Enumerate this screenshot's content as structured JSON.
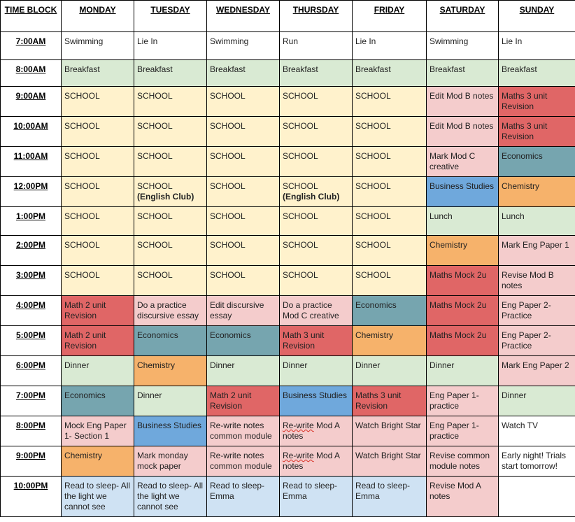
{
  "headers": [
    "TIME BLOCK",
    "MONDAY",
    "TUESDAY",
    "WEDNESDAY",
    "THURSDAY",
    "FRIDAY",
    "SATURDAY",
    "SUNDAY"
  ],
  "colors": {
    "white": "#ffffff",
    "green": "#d9ead3",
    "yellow": "#fff2cc",
    "pink": "#f4cccc",
    "red": "#e06666",
    "teal": "#76a5af",
    "orange": "#f6b26b",
    "blue": "#6fa8dc",
    "lightblue": "#cfe2f3"
  },
  "rows": [
    {
      "time": "7:00AM",
      "cells": [
        {
          "text": "Swimming",
          "color": "white"
        },
        {
          "text": "Lie In",
          "color": "white"
        },
        {
          "text": "Swimming",
          "color": "white"
        },
        {
          "text": "Run",
          "color": "white"
        },
        {
          "text": "Lie In",
          "color": "white"
        },
        {
          "text": "Swimming",
          "color": "white"
        },
        {
          "text": "Lie In",
          "color": "white"
        }
      ]
    },
    {
      "time": "8:00AM",
      "cells": [
        {
          "text": "Breakfast",
          "color": "green"
        },
        {
          "text": "Breakfast",
          "color": "green"
        },
        {
          "text": "Breakfast",
          "color": "green"
        },
        {
          "text": "Breakfast",
          "color": "green"
        },
        {
          "text": "Breakfast",
          "color": "green"
        },
        {
          "text": "Breakfast",
          "color": "green"
        },
        {
          "text": "Breakfast",
          "color": "green"
        }
      ]
    },
    {
      "time": "9:00AM",
      "cells": [
        {
          "text": "SCHOOL",
          "color": "yellow"
        },
        {
          "text": "SCHOOL",
          "color": "yellow"
        },
        {
          "text": "SCHOOL",
          "color": "yellow"
        },
        {
          "text": "SCHOOL",
          "color": "yellow"
        },
        {
          "text": "SCHOOL",
          "color": "yellow"
        },
        {
          "text": "Edit Mod B notes",
          "color": "pink"
        },
        {
          "text": "Maths 3 unit Revision",
          "color": "red"
        }
      ]
    },
    {
      "time": "10:00AM",
      "cells": [
        {
          "text": "SCHOOL",
          "color": "yellow"
        },
        {
          "text": "SCHOOL",
          "color": "yellow"
        },
        {
          "text": "SCHOOL",
          "color": "yellow"
        },
        {
          "text": "SCHOOL",
          "color": "yellow"
        },
        {
          "text": "SCHOOL",
          "color": "yellow"
        },
        {
          "text": "Edit Mod B notes",
          "color": "pink"
        },
        {
          "text": "Maths 3 unit Revision",
          "color": "red"
        }
      ]
    },
    {
      "time": "11:00AM",
      "cells": [
        {
          "text": "SCHOOL",
          "color": "yellow"
        },
        {
          "text": "SCHOOL",
          "color": "yellow"
        },
        {
          "text": "SCHOOL",
          "color": "yellow"
        },
        {
          "text": "SCHOOL",
          "color": "yellow"
        },
        {
          "text": "SCHOOL",
          "color": "yellow"
        },
        {
          "text": "Mark Mod C creative",
          "color": "pink"
        },
        {
          "text": "Economics",
          "color": "teal"
        }
      ]
    },
    {
      "time": "12:00PM",
      "cells": [
        {
          "text": "SCHOOL",
          "color": "yellow"
        },
        {
          "text": "SCHOOL",
          "extra": "(English Club)",
          "color": "yellow"
        },
        {
          "text": "SCHOOL",
          "color": "yellow"
        },
        {
          "text": "SCHOOL",
          "extra": "(English Club)",
          "color": "yellow"
        },
        {
          "text": "SCHOOL",
          "color": "yellow"
        },
        {
          "text": "Business Studies",
          "color": "blue"
        },
        {
          "text": "Chemistry",
          "color": "orange"
        }
      ]
    },
    {
      "time": "1:00PM",
      "cells": [
        {
          "text": "SCHOOL",
          "color": "yellow"
        },
        {
          "text": "SCHOOL",
          "color": "yellow"
        },
        {
          "text": "SCHOOL",
          "color": "yellow"
        },
        {
          "text": "SCHOOL",
          "color": "yellow"
        },
        {
          "text": "SCHOOL",
          "color": "yellow"
        },
        {
          "text": "Lunch",
          "color": "green"
        },
        {
          "text": "Lunch",
          "color": "green"
        }
      ]
    },
    {
      "time": "2:00PM",
      "cells": [
        {
          "text": "SCHOOL",
          "color": "yellow"
        },
        {
          "text": "SCHOOL",
          "color": "yellow"
        },
        {
          "text": "SCHOOL",
          "color": "yellow"
        },
        {
          "text": "SCHOOL",
          "color": "yellow"
        },
        {
          "text": "SCHOOL",
          "color": "yellow"
        },
        {
          "text": "Chemistry",
          "color": "orange"
        },
        {
          "text": "Mark Eng Paper 1",
          "color": "pink"
        }
      ]
    },
    {
      "time": "3:00PM",
      "cells": [
        {
          "text": "SCHOOL",
          "color": "yellow"
        },
        {
          "text": "SCHOOL",
          "color": "yellow"
        },
        {
          "text": "SCHOOL",
          "color": "yellow"
        },
        {
          "text": "SCHOOL",
          "color": "yellow"
        },
        {
          "text": "SCHOOL",
          "color": "yellow"
        },
        {
          "text": "Maths Mock 2u",
          "color": "red"
        },
        {
          "text": "Revise Mod B notes",
          "color": "pink"
        }
      ]
    },
    {
      "time": "4:00PM",
      "cells": [
        {
          "text": "Math 2 unit Revision",
          "color": "red"
        },
        {
          "text": "Do a practice discursive essay",
          "color": "pink"
        },
        {
          "text": "Edit discursive essay",
          "color": "pink"
        },
        {
          "text": "Do a practice Mod C creative",
          "color": "pink"
        },
        {
          "text": "Economics",
          "color": "teal"
        },
        {
          "text": "Maths Mock 2u",
          "color": "red"
        },
        {
          "text": "Eng Paper 2- Practice",
          "color": "pink"
        }
      ]
    },
    {
      "time": "5:00PM",
      "cells": [
        {
          "text": "Math 2 unit Revision",
          "color": "red"
        },
        {
          "text": "Economics",
          "color": "teal"
        },
        {
          "text": "Economics",
          "color": "teal"
        },
        {
          "text": "Math 3 unit Revision",
          "color": "red"
        },
        {
          "text": "Chemistry",
          "color": "orange"
        },
        {
          "text": "Maths Mock 2u",
          "color": "red"
        },
        {
          "text": "Eng Paper 2- Practice",
          "color": "pink"
        }
      ]
    },
    {
      "time": "6:00PM",
      "cells": [
        {
          "text": "Dinner",
          "color": "green"
        },
        {
          "text": "Chemistry",
          "color": "orange"
        },
        {
          "text": "Dinner",
          "color": "green"
        },
        {
          "text": "Dinner",
          "color": "green"
        },
        {
          "text": "Dinner",
          "color": "green"
        },
        {
          "text": "Dinner",
          "color": "green"
        },
        {
          "text": "Mark Eng Paper 2",
          "color": "pink"
        }
      ]
    },
    {
      "time": "7:00PM",
      "cells": [
        {
          "text": "Economics",
          "color": "teal"
        },
        {
          "text": "Dinner",
          "color": "green"
        },
        {
          "text": "Math 2 unit Revision",
          "color": "red"
        },
        {
          "text": "Business Studies",
          "color": "blue"
        },
        {
          "text": "Maths 3 unit Revision",
          "color": "red"
        },
        {
          "text": "Eng Paper 1- practice",
          "color": "pink"
        },
        {
          "text": "Dinner",
          "color": "green"
        }
      ]
    },
    {
      "time": "8:00PM",
      "cells": [
        {
          "text": "Mock Eng Paper 1- Section 1",
          "color": "pink"
        },
        {
          "text": "Business Studies",
          "color": "blue"
        },
        {
          "text": "Re-write notes common module",
          "color": "pink"
        },
        {
          "text": "Re-write Mod A notes",
          "color": "pink",
          "squiggle": "Re-write"
        },
        {
          "text": "Watch Bright Star",
          "color": "pink"
        },
        {
          "text": "Eng Paper 1- practice",
          "color": "pink"
        },
        {
          "text": "Watch TV",
          "color": "white"
        }
      ]
    },
    {
      "time": "9:00PM",
      "cells": [
        {
          "text": "Chemistry",
          "color": "orange"
        },
        {
          "text": "Mark monday mock paper",
          "color": "pink"
        },
        {
          "text": "Re-write notes common module",
          "color": "pink"
        },
        {
          "text": "Re-write Mod A notes",
          "color": "pink",
          "squiggle": "Re-write"
        },
        {
          "text": "Watch Bright Star",
          "color": "pink"
        },
        {
          "text": "Revise common module notes",
          "color": "pink"
        },
        {
          "text": "Early night! Trials start tomorrow!",
          "color": "white"
        }
      ]
    },
    {
      "time": "10:00PM",
      "cells": [
        {
          "text": "Read to sleep- All the light we cannot see",
          "color": "lightblue"
        },
        {
          "text": "Read to sleep- All the light we cannot see",
          "color": "lightblue"
        },
        {
          "text": "Read to sleep- Emma",
          "color": "lightblue"
        },
        {
          "text": "Read to sleep- Emma",
          "color": "lightblue"
        },
        {
          "text": "Read to sleep- Emma",
          "color": "lightblue"
        },
        {
          "text": " Revise Mod A notes",
          "color": "pink"
        },
        {
          "text": "",
          "color": "white"
        }
      ]
    }
  ]
}
